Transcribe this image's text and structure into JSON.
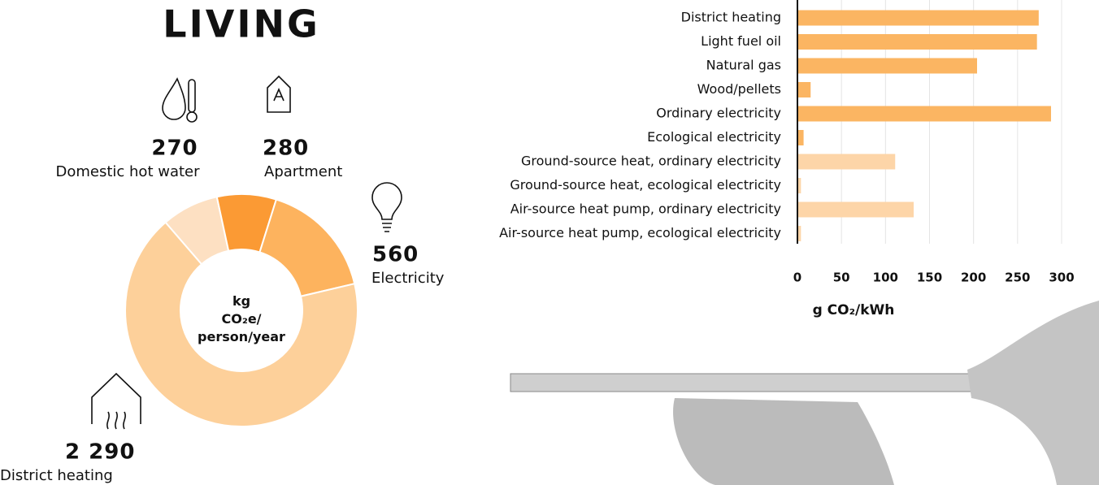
{
  "chart_data": [
    {
      "type": "donut",
      "title": "LIVING",
      "center_label": "kg CO₂e/ person/year",
      "categories": [
        "Domestic hot water",
        "Apartment",
        "Electricity",
        "District heating"
      ],
      "values": [
        270,
        280,
        560,
        2290
      ],
      "value_labels": [
        "270",
        "280",
        "560",
        "2 290"
      ],
      "colors": [
        "#fde0c2",
        "#fb9a34",
        "#fdb35e",
        "#fdd09a"
      ]
    },
    {
      "type": "hbar",
      "x_label": "g CO₂/kWh",
      "categories": [
        "District heating",
        "Light fuel oil",
        "Natural gas",
        "Wood/pellets",
        "Ordinary electricity",
        "Ecological electricity",
        "Ground-source heat, ordinary electricity",
        "Ground-source heat, ecological electricity",
        "Air-source heat pump, ordinary electricity",
        "Air-source heat pump, ecological electricity"
      ],
      "values": [
        274,
        272,
        204,
        15,
        288,
        7,
        111,
        4,
        132,
        4
      ],
      "colors": [
        "#fbb562",
        "#fbb562",
        "#fbb562",
        "#fbb562",
        "#fbb562",
        "#fbb562",
        "#fdd5a8",
        "#fdd5a8",
        "#fdd5a8",
        "#fdd5a8"
      ],
      "xlim": [
        0,
        300
      ],
      "xticks": [
        0,
        50,
        100,
        150,
        200,
        250,
        300
      ],
      "grid": true
    }
  ]
}
